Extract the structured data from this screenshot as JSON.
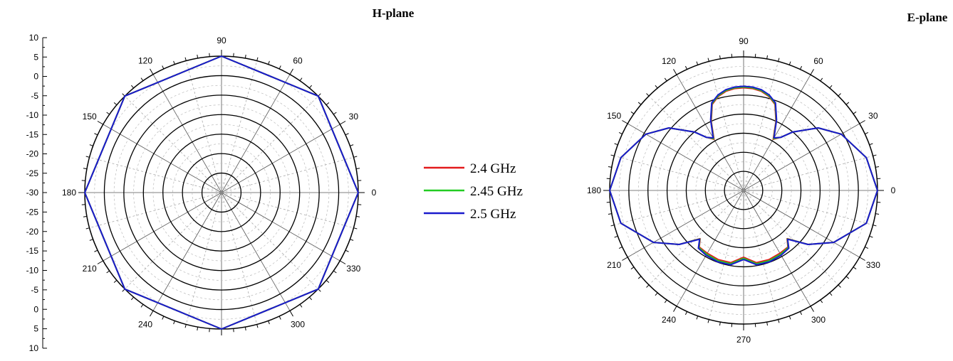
{
  "chart_data": [
    {
      "type": "polar",
      "title": "H-plane",
      "angle_unit": "degrees",
      "angle_ticks": [
        0,
        30,
        60,
        90,
        120,
        150,
        180,
        210,
        240,
        300,
        330
      ],
      "angle_tick_labels": [
        "0",
        "30",
        "60",
        "90",
        "120",
        "150",
        "180",
        "210",
        "240",
        "300",
        "330"
      ],
      "r_axis_range": [
        -30,
        5
      ],
      "r_axis_tick_labels_upper": [
        "10",
        "5",
        "0",
        "-5",
        "-10",
        "-15",
        "-20",
        "-25",
        "-30"
      ],
      "r_axis_tick_labels_lower": [
        "-25",
        "-20",
        "-15",
        "-10",
        "-5",
        "0",
        "5",
        "10"
      ],
      "grid": true,
      "series": [
        {
          "name": "2.4 GHz",
          "color": "#e31a1c",
          "theta": [
            0,
            45,
            90,
            135,
            180,
            225,
            270,
            315,
            360
          ],
          "r": [
            5,
            5,
            5,
            5,
            5,
            5,
            5,
            5,
            5
          ]
        },
        {
          "name": "2.45 GHz",
          "color": "#22cc22",
          "theta": [
            0,
            45,
            90,
            135,
            180,
            225,
            270,
            315,
            360
          ],
          "r": [
            5,
            5,
            5,
            5,
            5,
            5,
            5,
            5,
            5
          ]
        },
        {
          "name": "2.5 GHz",
          "color": "#1a1acc",
          "theta": [
            0,
            45,
            90,
            135,
            180,
            225,
            270,
            315,
            360
          ],
          "r": [
            5,
            5,
            5,
            5,
            5,
            5,
            5,
            5,
            5
          ]
        }
      ]
    },
    {
      "type": "polar",
      "title": "E-plane",
      "angle_unit": "degrees",
      "angle_ticks": [
        0,
        30,
        60,
        90,
        120,
        150,
        180,
        210,
        240,
        270,
        300,
        330
      ],
      "angle_tick_labels": [
        "0",
        "30",
        "60",
        "90",
        "120",
        "150",
        "180",
        "210",
        "240",
        "270",
        "300",
        "330"
      ],
      "r_axis_range": [
        -30,
        5
      ],
      "grid": true,
      "series": [
        {
          "name": "2.4 GHz",
          "color": "#e31a1c",
          "theta": [
            0,
            15,
            30,
            40,
            50,
            55,
            60,
            65,
            70,
            75,
            80,
            85,
            90,
            95,
            100,
            105,
            110,
            115,
            120,
            125,
            130,
            140,
            150,
            165,
            180,
            195,
            210,
            220,
            225,
            228,
            232,
            240,
            250,
            260,
            270,
            280,
            290,
            300,
            308,
            312,
            315,
            320,
            330,
            345
          ],
          "r": [
            5,
            3.2,
            -0.5,
            -4.5,
            -10,
            -13,
            -14.5,
            -10,
            -6,
            -4.5,
            -3.6,
            -3.2,
            -3.1,
            -3.2,
            -3.6,
            -4.5,
            -6,
            -10,
            -14.5,
            -13,
            -10,
            -4.5,
            -0.5,
            3.2,
            5,
            3.2,
            -2.8,
            -8,
            -11.5,
            -13,
            -11.2,
            -11,
            -10.7,
            -10.8,
            -12.5,
            -10.8,
            -10.7,
            -11,
            -11.2,
            -13,
            -11.5,
            -8,
            -2.8,
            3.2
          ]
        },
        {
          "name": "2.45 GHz",
          "color": "#22cc22",
          "theta": [
            0,
            15,
            30,
            40,
            50,
            55,
            60,
            65,
            70,
            75,
            80,
            85,
            90,
            95,
            100,
            105,
            110,
            115,
            120,
            125,
            130,
            140,
            150,
            165,
            180,
            195,
            210,
            220,
            225,
            228,
            232,
            240,
            250,
            260,
            270,
            280,
            290,
            300,
            308,
            312,
            315,
            320,
            330,
            345
          ],
          "r": [
            5,
            3.2,
            -0.5,
            -4.5,
            -10,
            -13,
            -14.3,
            -9.8,
            -5.8,
            -4.3,
            -3.4,
            -3.0,
            -2.9,
            -3.0,
            -3.4,
            -4.3,
            -5.8,
            -9.8,
            -14.3,
            -13,
            -10,
            -4.5,
            -0.5,
            3.2,
            5,
            3.2,
            -2.8,
            -8,
            -11.4,
            -12.9,
            -11.0,
            -10.7,
            -10.4,
            -10.5,
            -12.2,
            -10.5,
            -10.4,
            -10.7,
            -11.0,
            -12.9,
            -11.4,
            -8,
            -2.8,
            3.2
          ]
        },
        {
          "name": "2.5 GHz",
          "color": "#1a1acc",
          "theta": [
            0,
            15,
            30,
            40,
            50,
            55,
            60,
            65,
            70,
            75,
            80,
            85,
            90,
            95,
            100,
            105,
            110,
            115,
            120,
            125,
            130,
            140,
            150,
            165,
            180,
            195,
            210,
            220,
            225,
            228,
            232,
            240,
            250,
            260,
            270,
            280,
            290,
            300,
            308,
            312,
            315,
            320,
            330,
            345
          ],
          "r": [
            5,
            3.2,
            -0.5,
            -4.5,
            -10,
            -13,
            -14.1,
            -9.6,
            -5.6,
            -4.1,
            -3.2,
            -2.8,
            -2.7,
            -2.8,
            -3.2,
            -4.1,
            -5.6,
            -9.6,
            -14.1,
            -13,
            -10,
            -4.5,
            -0.5,
            3.2,
            5,
            3.2,
            -2.8,
            -8,
            -11.3,
            -12.8,
            -10.8,
            -10.4,
            -10.1,
            -10.2,
            -11.9,
            -10.2,
            -10.1,
            -10.4,
            -10.8,
            -12.8,
            -11.3,
            -8,
            -2.8,
            3.2
          ]
        }
      ]
    }
  ]
}
